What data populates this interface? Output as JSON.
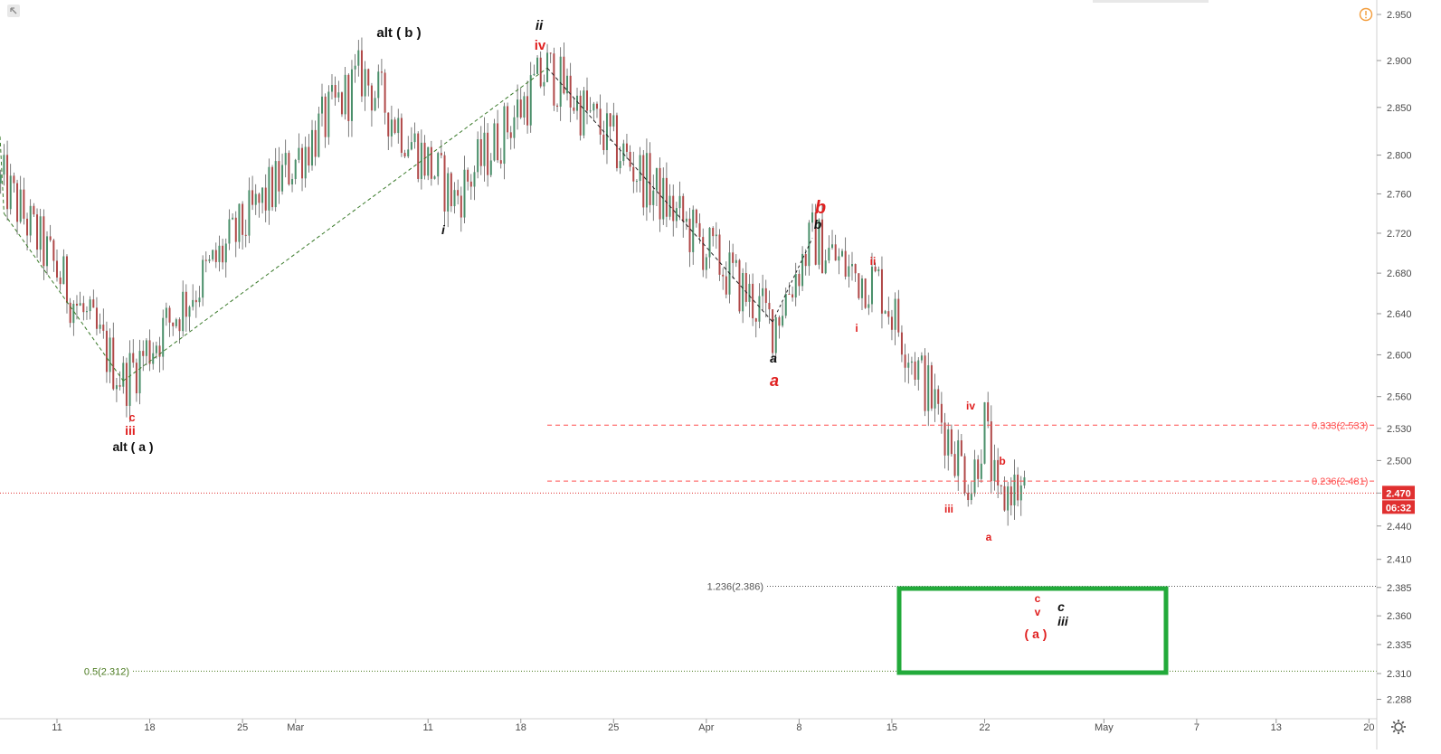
{
  "chart_data": {
    "type": "candlestick",
    "x_ticks": [
      "11",
      "18",
      "25",
      "Mar",
      "11",
      "18",
      "25",
      "Apr",
      "8",
      "15",
      "22",
      "May",
      "7",
      "13",
      "20"
    ],
    "y_ticks": [
      "2.950",
      "2.900",
      "2.850",
      "2.800",
      "2.760",
      "2.720",
      "2.680",
      "2.640",
      "2.600",
      "2.560",
      "2.530",
      "2.500",
      "2.470",
      "2.440",
      "2.410",
      "2.385",
      "2.360",
      "2.335",
      "2.310",
      "2.288"
    ],
    "y_scale": "log",
    "price_badge": "2.470",
    "countdown_badge": "06:32",
    "fib_levels": [
      {
        "label": "0.333(2.533)",
        "value": 2.533,
        "color": "#ff4d4d",
        "style": "dashed"
      },
      {
        "label": "0.236(2.481)",
        "value": 2.481,
        "color": "#ff4d4d",
        "style": "dashed"
      },
      {
        "label": "1.236(2.386)",
        "value": 2.386,
        "color": "#555555",
        "style": "dotted"
      },
      {
        "label": "0.5(2.312)",
        "value": 2.312,
        "color": "#4a7a1f",
        "style": "dotted"
      }
    ],
    "current_price": 2.47,
    "wave_labels": [
      {
        "text": "alt ( b )",
        "color": "black"
      },
      {
        "text": "ii",
        "color": "black",
        "italic": true
      },
      {
        "text": "iv",
        "color": "red"
      },
      {
        "text": "i",
        "color": "black",
        "italic": true
      },
      {
        "text": "c",
        "color": "red"
      },
      {
        "text": "iii",
        "color": "red"
      },
      {
        "text": "alt ( a )",
        "color": "black"
      },
      {
        "text": "b",
        "color": "red",
        "italic": true
      },
      {
        "text": "b",
        "color": "black",
        "italic": true
      },
      {
        "text": "a",
        "color": "black",
        "italic": true
      },
      {
        "text": "a",
        "color": "red",
        "italic": true
      },
      {
        "text": "ii",
        "color": "red"
      },
      {
        "text": "i",
        "color": "red"
      },
      {
        "text": "iv",
        "color": "red"
      },
      {
        "text": "iii",
        "color": "red"
      },
      {
        "text": "b",
        "color": "red"
      },
      {
        "text": "a",
        "color": "red"
      },
      {
        "text": "c",
        "color": "red"
      },
      {
        "text": "v",
        "color": "red"
      },
      {
        "text": "( a )",
        "color": "red"
      },
      {
        "text": "c",
        "color": "black",
        "italic": true
      },
      {
        "text": "iii",
        "color": "black",
        "italic": true
      }
    ],
    "key_points": [
      {
        "date": "Feb 7",
        "price": 2.77
      },
      {
        "date": "Feb 16",
        "price": 2.575
      },
      {
        "date": "Mar 6",
        "price": 2.885
      },
      {
        "date": "Mar 13",
        "price": 2.755
      },
      {
        "date": "Mar 20",
        "price": 2.89
      },
      {
        "date": "Apr 6",
        "price": 2.63
      },
      {
        "date": "Apr 9",
        "price": 2.715
      },
      {
        "date": "Apr 12",
        "price": 2.68
      },
      {
        "date": "Apr 14",
        "price": 2.67
      },
      {
        "date": "Apr 21",
        "price": 2.478
      },
      {
        "date": "Apr 22",
        "price": 2.535
      },
      {
        "date": "Apr 23",
        "price": 2.455
      },
      {
        "date": "Apr 24",
        "price": 2.478
      },
      {
        "date": "Apr 25",
        "price": 2.468
      }
    ]
  }
}
